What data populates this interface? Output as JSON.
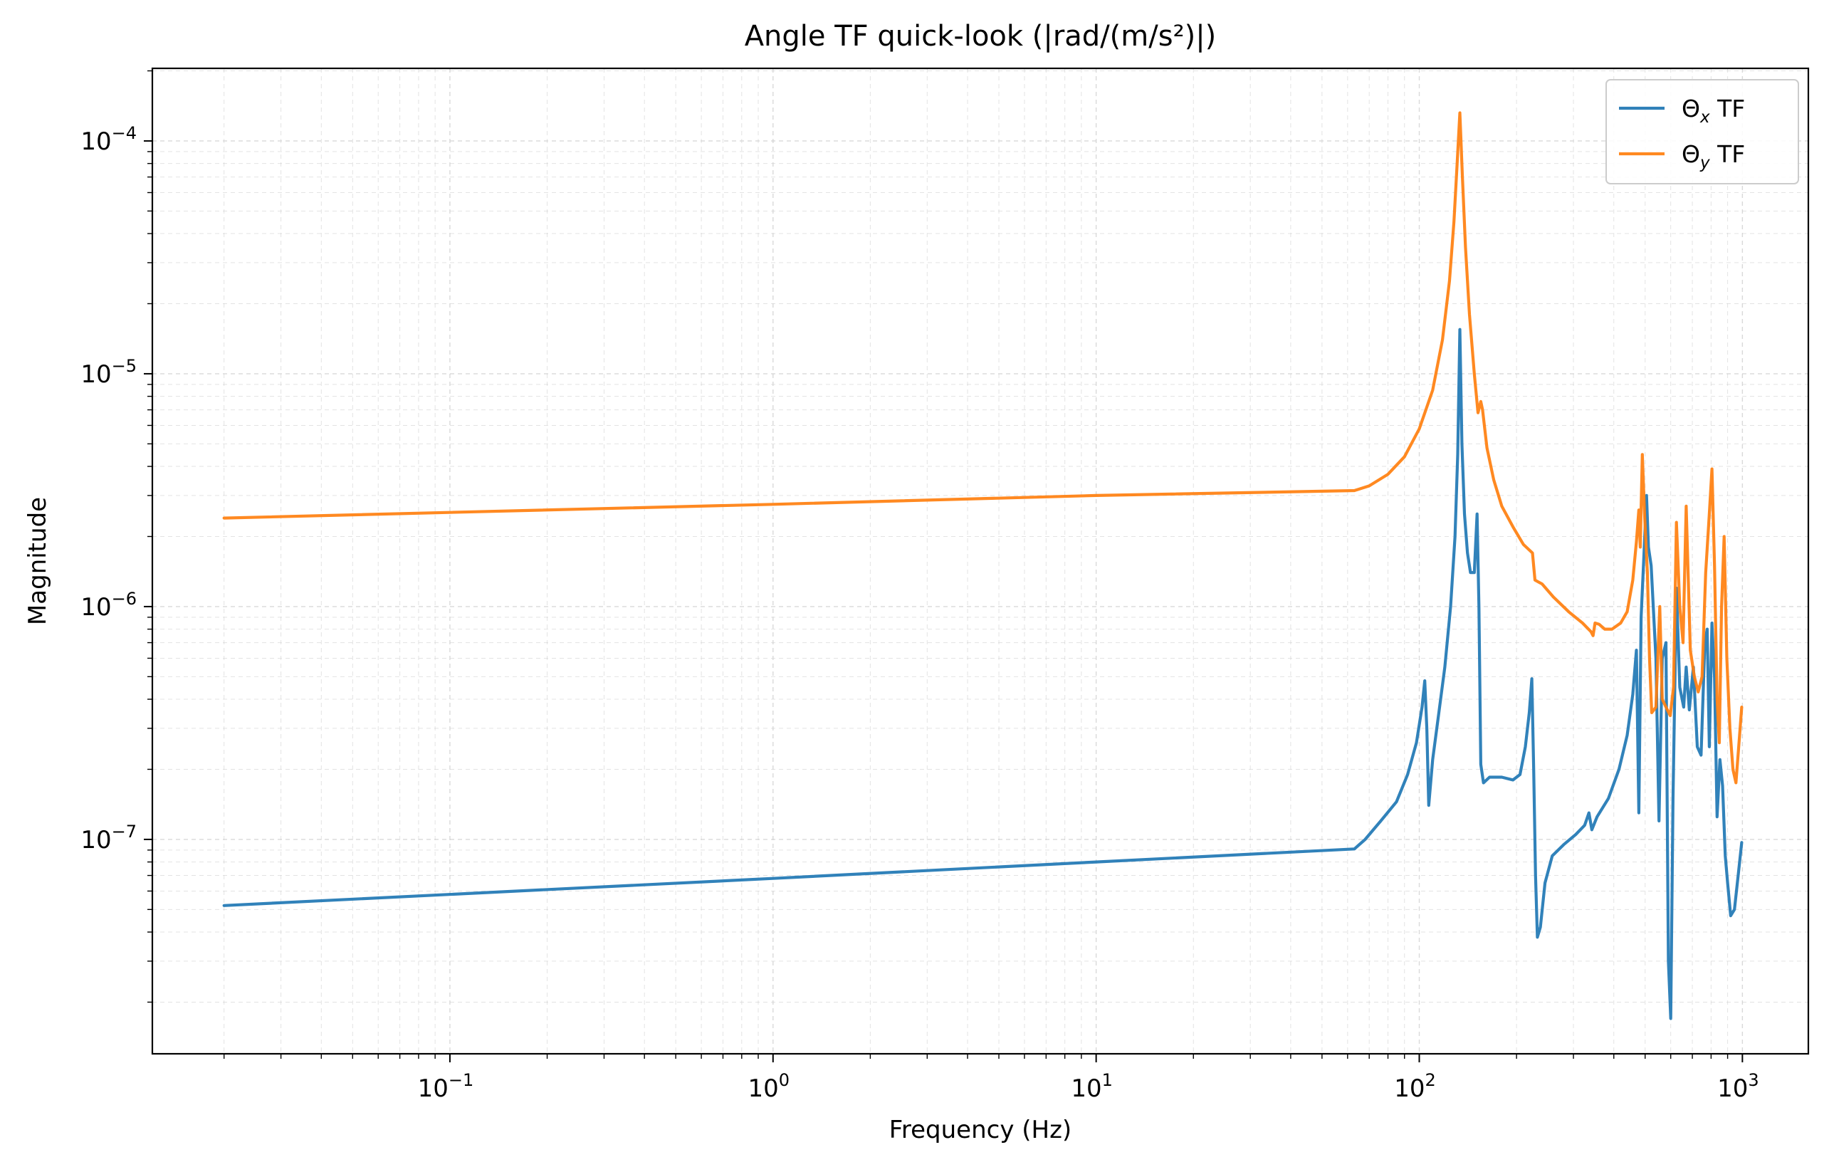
{
  "chart_data": {
    "type": "line",
    "title": "Angle TF quick-look (|rad/(m/s²)|)",
    "xlabel": "Frequency (Hz)",
    "ylabel": "Magnitude",
    "x_scale": "log",
    "y_scale": "log",
    "xlim": [
      0.012,
      1600
    ],
    "ylim": [
      1.2e-08,
      0.000205
    ],
    "grid": true,
    "legend_position": "top-right",
    "x_ticks": [
      {
        "value": 0.1,
        "base": "10",
        "exp": "−1"
      },
      {
        "value": 1,
        "base": "10",
        "exp": "0"
      },
      {
        "value": 10,
        "base": "10",
        "exp": "1"
      },
      {
        "value": 100,
        "base": "10",
        "exp": "2"
      },
      {
        "value": 1000,
        "base": "10",
        "exp": "3"
      }
    ],
    "y_ticks": [
      {
        "value": 1e-07,
        "base": "10",
        "exp": "−7"
      },
      {
        "value": 1e-06,
        "base": "10",
        "exp": "−6"
      },
      {
        "value": 1e-05,
        "base": "10",
        "exp": "−5"
      },
      {
        "value": 0.0001,
        "base": "10",
        "exp": "−4"
      }
    ],
    "series": [
      {
        "name_main": "Θ",
        "name_sub": "x",
        "name_rest": " TF",
        "color": "#1f77b4",
        "points": [
          [
            0.02,
            5.2e-08
          ],
          [
            1,
            6.8e-08
          ],
          [
            10,
            8e-08
          ],
          [
            63,
            9.1e-08
          ],
          [
            68,
            1e-07
          ],
          [
            76,
            1.2e-07
          ],
          [
            85,
            1.45e-07
          ],
          [
            92,
            1.9e-07
          ],
          [
            98,
            2.6e-07
          ],
          [
            102,
            3.7e-07
          ],
          [
            104,
            4.8e-07
          ],
          [
            105.5,
            3e-07
          ],
          [
            107,
            1.4e-07
          ],
          [
            110,
            2.2e-07
          ],
          [
            115,
            3.5e-07
          ],
          [
            120,
            5.5e-07
          ],
          [
            125,
            1e-06
          ],
          [
            129,
            2e-06
          ],
          [
            131.5,
            4.5e-06
          ],
          [
            133.5,
            1.55e-05
          ],
          [
            135.5,
            5e-06
          ],
          [
            138,
            2.5e-06
          ],
          [
            141,
            1.7e-06
          ],
          [
            144,
            1.4e-06
          ],
          [
            148,
            1.4e-06
          ],
          [
            151,
            2.5e-06
          ],
          [
            153,
            1e-06
          ],
          [
            155,
            2.1e-07
          ],
          [
            158,
            1.75e-07
          ],
          [
            165,
            1.85e-07
          ],
          [
            180,
            1.85e-07
          ],
          [
            195,
            1.8e-07
          ],
          [
            205,
            1.9e-07
          ],
          [
            213,
            2.5e-07
          ],
          [
            219,
            3.5e-07
          ],
          [
            223,
            4.9e-07
          ],
          [
            226,
            2e-07
          ],
          [
            229,
            7e-08
          ],
          [
            232,
            3.8e-08
          ],
          [
            237,
            4.2e-08
          ],
          [
            245,
            6.5e-08
          ],
          [
            258,
            8.5e-08
          ],
          [
            280,
            9.5e-08
          ],
          [
            305,
            1.05e-07
          ],
          [
            325,
            1.15e-07
          ],
          [
            335,
            1.3e-07
          ],
          [
            342,
            1.1e-07
          ],
          [
            355,
            1.25e-07
          ],
          [
            385,
            1.5e-07
          ],
          [
            415,
            2e-07
          ],
          [
            440,
            2.8e-07
          ],
          [
            458,
            4.2e-07
          ],
          [
            470,
            6.5e-07
          ],
          [
            478,
            1.3e-07
          ],
          [
            486,
            9e-07
          ],
          [
            495,
            1.6e-06
          ],
          [
            505,
            3e-06
          ],
          [
            512,
            1.8e-06
          ],
          [
            522,
            1.5e-06
          ],
          [
            540,
            6e-07
          ],
          [
            552,
            1.2e-07
          ],
          [
            565,
            6e-07
          ],
          [
            580,
            7e-07
          ],
          [
            590,
            3e-08
          ],
          [
            600,
            1.7e-08
          ],
          [
            610,
            1.5e-07
          ],
          [
            625,
            1.2e-06
          ],
          [
            640,
            4.5e-07
          ],
          [
            658,
            3.7e-07
          ],
          [
            670,
            5.5e-07
          ],
          [
            685,
            3.6e-07
          ],
          [
            705,
            5.5e-07
          ],
          [
            725,
            2.5e-07
          ],
          [
            745,
            2.3e-07
          ],
          [
            765,
            7e-07
          ],
          [
            778,
            8e-07
          ],
          [
            790,
            2.5e-07
          ],
          [
            805,
            8.5e-07
          ],
          [
            820,
            5e-07
          ],
          [
            835,
            1.25e-07
          ],
          [
            852,
            2.2e-07
          ],
          [
            868,
            1.7e-07
          ],
          [
            885,
            8.5e-08
          ],
          [
            900,
            6.5e-08
          ],
          [
            920,
            4.7e-08
          ],
          [
            945,
            5e-08
          ],
          [
            970,
            7e-08
          ],
          [
            995,
            9.7e-08
          ]
        ]
      },
      {
        "name_main": "Θ",
        "name_sub": "y",
        "name_rest": " TF",
        "color": "#ff7f0e",
        "points": [
          [
            0.02,
            2.4e-06
          ],
          [
            1,
            2.75e-06
          ],
          [
            10,
            3e-06
          ],
          [
            63,
            3.15e-06
          ],
          [
            70,
            3.3e-06
          ],
          [
            80,
            3.7e-06
          ],
          [
            90,
            4.4e-06
          ],
          [
            100,
            5.8e-06
          ],
          [
            110,
            8.5e-06
          ],
          [
            118,
            1.4e-05
          ],
          [
            124,
            2.5e-05
          ],
          [
            128,
            4.5e-05
          ],
          [
            131,
            8e-05
          ],
          [
            133.5,
            0.000132
          ],
          [
            136,
            7e-05
          ],
          [
            139,
            3.5e-05
          ],
          [
            143,
            1.8e-05
          ],
          [
            148,
            1e-05
          ],
          [
            152,
            6.8e-06
          ],
          [
            155,
            7.6e-06
          ],
          [
            157,
            7e-06
          ],
          [
            162,
            4.8e-06
          ],
          [
            170,
            3.5e-06
          ],
          [
            180,
            2.7e-06
          ],
          [
            195,
            2.2e-06
          ],
          [
            210,
            1.85e-06
          ],
          [
            224,
            1.7e-06
          ],
          [
            228,
            1.3e-06
          ],
          [
            240,
            1.25e-06
          ],
          [
            260,
            1.1e-06
          ],
          [
            290,
            9.5e-07
          ],
          [
            320,
            8.5e-07
          ],
          [
            340,
            7.8e-07
          ],
          [
            345,
            7.5e-07
          ],
          [
            350,
            8.5e-07
          ],
          [
            360,
            8.4e-07
          ],
          [
            375,
            8e-07
          ],
          [
            395,
            8e-07
          ],
          [
            420,
            8.5e-07
          ],
          [
            440,
            9.5e-07
          ],
          [
            458,
            1.3e-06
          ],
          [
            470,
            1.9e-06
          ],
          [
            478,
            2.6e-06
          ],
          [
            483,
            1.8e-06
          ],
          [
            490,
            4.5e-06
          ],
          [
            498,
            2.5e-06
          ],
          [
            508,
            1.4e-06
          ],
          [
            516,
            6e-07
          ],
          [
            524,
            3.5e-07
          ],
          [
            540,
            3.7e-07
          ],
          [
            555,
            1e-06
          ],
          [
            565,
            4e-07
          ],
          [
            580,
            3.7e-07
          ],
          [
            598,
            3.4e-07
          ],
          [
            612,
            4.5e-07
          ],
          [
            625,
            2.3e-06
          ],
          [
            640,
            1e-06
          ],
          [
            655,
            7e-07
          ],
          [
            670,
            2.7e-06
          ],
          [
            690,
            6.5e-07
          ],
          [
            710,
            5e-07
          ],
          [
            730,
            4.3e-07
          ],
          [
            750,
            5e-07
          ],
          [
            770,
            1.4e-06
          ],
          [
            790,
            2.5e-06
          ],
          [
            805,
            3.9e-06
          ],
          [
            820,
            1.5e-06
          ],
          [
            835,
            4e-07
          ],
          [
            848,
            2.6e-07
          ],
          [
            862,
            1e-06
          ],
          [
            878,
            2e-06
          ],
          [
            895,
            6e-07
          ],
          [
            915,
            3e-07
          ],
          [
            935,
            2e-07
          ],
          [
            955,
            1.75e-07
          ],
          [
            980,
            2.8e-07
          ],
          [
            995,
            3.7e-07
          ]
        ]
      }
    ]
  }
}
